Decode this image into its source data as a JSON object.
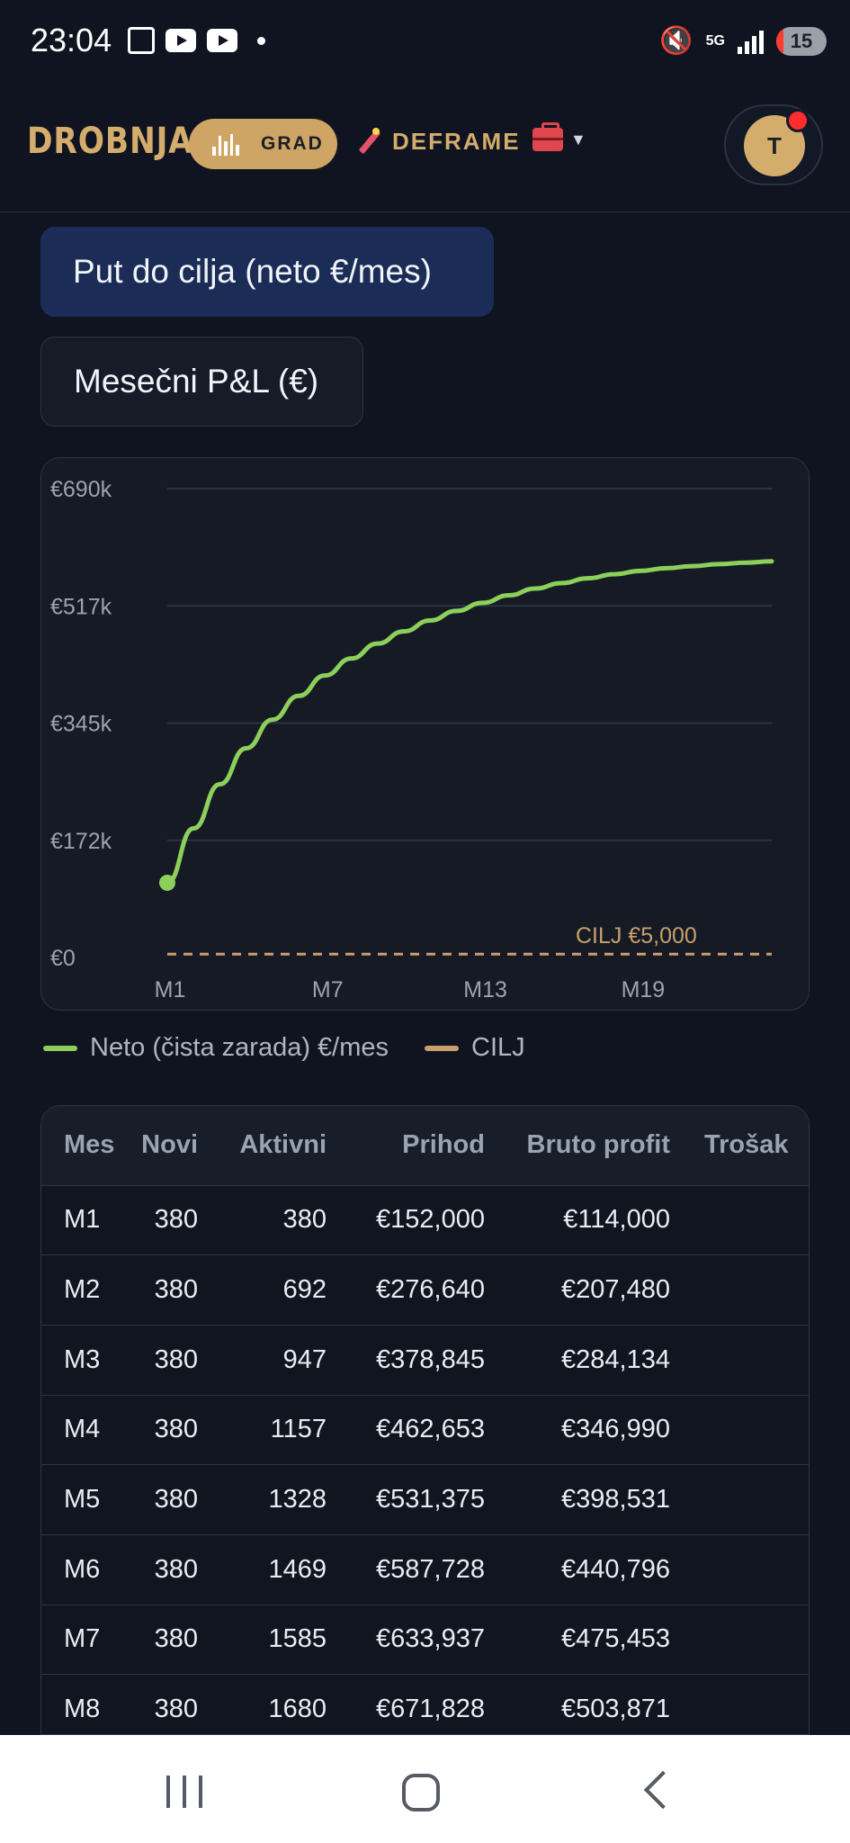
{
  "status_bar": {
    "time": "23:04",
    "battery": "15",
    "network": "5G"
  },
  "header": {
    "brand": "DROBNJAK",
    "grad_label": "GRAD",
    "deframe_label": "DEFRAME",
    "avatar_initial": "T"
  },
  "tabs": [
    {
      "label": "Put do cilja (neto €/mes)",
      "active": true
    },
    {
      "label": "Mesečni P&L (€)",
      "active": false
    }
  ],
  "colors": {
    "line": "#8ccf5b",
    "goal": "#c8a06a",
    "active_tab": "#1b2d57",
    "accent": "#d4ac6c"
  },
  "chart_data": {
    "type": "line",
    "y_ticks": [
      "€690k",
      "€517k",
      "€345k",
      "€172k",
      "€0"
    ],
    "x_ticks": [
      "M1",
      "M7",
      "M13",
      "M19"
    ],
    "ylim": [
      0,
      690000
    ],
    "x": [
      1,
      2,
      3,
      4,
      5,
      6,
      7,
      8,
      9,
      10,
      11,
      12,
      13,
      14,
      15,
      16,
      17,
      18,
      19,
      20,
      21,
      22,
      23,
      24
    ],
    "series": [
      {
        "name": "Neto (čista zarada) €/mes",
        "values": [
          110000,
          190000,
          255000,
          308000,
          350000,
          385000,
          415000,
          440000,
          462000,
          480000,
          496000,
          510000,
          522000,
          533000,
          543000,
          551000,
          558000,
          564000,
          569000,
          573000,
          576000,
          579000,
          581000,
          583000
        ]
      }
    ],
    "goal": {
      "label": "CILJ €5,000",
      "value": 5000
    },
    "grid": true,
    "legend": [
      {
        "label": "Neto (čista zarada) €/mes",
        "color": "#8ccf5b"
      },
      {
        "label": "CILJ",
        "color": "#c8a06a"
      }
    ]
  },
  "table": {
    "columns": [
      "Mes",
      "Novi",
      "Aktivni",
      "Prihod",
      "Bruto profit",
      "Trošak"
    ],
    "rows": [
      [
        "M1",
        "380",
        "380",
        "€152,000",
        "€114,000",
        ""
      ],
      [
        "M2",
        "380",
        "692",
        "€276,640",
        "€207,480",
        ""
      ],
      [
        "M3",
        "380",
        "947",
        "€378,845",
        "€284,134",
        ""
      ],
      [
        "M4",
        "380",
        "1157",
        "€462,653",
        "€346,990",
        ""
      ],
      [
        "M5",
        "380",
        "1328",
        "€531,375",
        "€398,531",
        ""
      ],
      [
        "M6",
        "380",
        "1469",
        "€587,728",
        "€440,796",
        ""
      ],
      [
        "M7",
        "380",
        "1585",
        "€633,937",
        "€475,453",
        ""
      ],
      [
        "M8",
        "380",
        "1680",
        "€671,828",
        "€503,871",
        ""
      ]
    ]
  }
}
